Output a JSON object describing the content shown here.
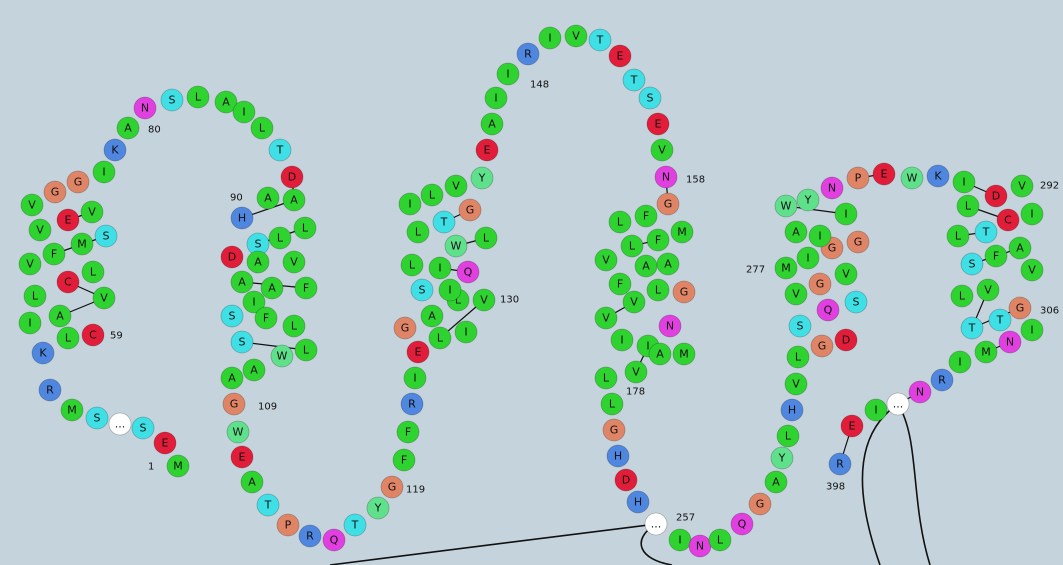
{
  "residues": [
    "M",
    "E",
    "S",
    "...",
    "S",
    "M",
    "R",
    "K",
    "L",
    "I",
    "C",
    "A",
    "V",
    "L",
    "C",
    "L",
    "V",
    "F",
    "M",
    "S",
    "V",
    "E",
    "V",
    "V",
    "G",
    "G",
    "I",
    "K",
    "A",
    "N",
    "S",
    "L",
    "A",
    "I",
    "L",
    "T",
    "D",
    "A",
    "A",
    "H",
    "L",
    "L",
    "S",
    "D",
    "A",
    "V",
    "A",
    "A",
    "F",
    "I",
    "S",
    "F",
    "L",
    "S",
    "W",
    "L",
    "A",
    "A",
    "G",
    "W",
    "E",
    "A",
    "T",
    "P",
    "R",
    "Q",
    "T",
    "Y",
    "G",
    "F",
    "F",
    "R",
    "I",
    "E",
    "G",
    "A",
    "I",
    "L",
    "L",
    "V",
    "I",
    "S",
    "L",
    "I",
    "Q",
    "L",
    "W",
    "L",
    "T",
    "G",
    "I",
    "L",
    "V",
    "Y",
    "E",
    "A",
    "I",
    "I",
    "R",
    "I",
    "V",
    "T",
    "E",
    "T",
    "S",
    "E",
    "V",
    "N",
    "G",
    "F",
    "L",
    "M",
    "F",
    "L",
    "V",
    "A",
    "A",
    "F",
    "L",
    "G",
    "V",
    "V",
    "N",
    "I",
    "I",
    "V",
    "A",
    "M",
    "L",
    "L",
    "G",
    "H",
    "D",
    "H",
    "...",
    "I",
    "N",
    "L",
    "Q",
    "G",
    "A",
    "Y",
    "L",
    "H",
    "V",
    "L",
    "G",
    "D",
    "S",
    "Q",
    "S",
    "V",
    "G",
    "V",
    "M",
    "I",
    "G",
    "G",
    "A",
    "I",
    "I",
    "W",
    "Y",
    "N",
    "P",
    "E",
    "W",
    "K",
    "I",
    "D",
    "V",
    "L",
    "C",
    "I",
    "L",
    "T",
    "A",
    "S",
    "F",
    "V",
    "L",
    "V",
    "G",
    "T",
    "T",
    "I",
    "N",
    "M",
    "I",
    "R",
    "N",
    "...",
    "I",
    "E",
    "R"
  ],
  "position_labels": [
    "1",
    "59",
    "80",
    "90",
    "109",
    "119",
    "130",
    "148",
    "158",
    "178",
    "257",
    "277",
    "292",
    "306",
    "398"
  ],
  "residue_colors": {
    "A": "#2fd32f",
    "I": "#2fd32f",
    "L": "#2fd32f",
    "M": "#2fd32f",
    "F": "#2fd32f",
    "V": "#2fd32f",
    "W": "#5fe08a",
    "Y": "#5fe08a",
    "G": "#e08466",
    "P": "#e08466",
    "C": "#e21d3a",
    "D": "#e21d3a",
    "E": "#e21d3a",
    "K": "#4f86e0",
    "R": "#4f86e0",
    "H": "#4f86e0",
    "S": "#3ee0e6",
    "T": "#3ee0e6",
    "N": "#e23fe0",
    "Q": "#e23fe0",
    "...": "#ffffff"
  }
}
